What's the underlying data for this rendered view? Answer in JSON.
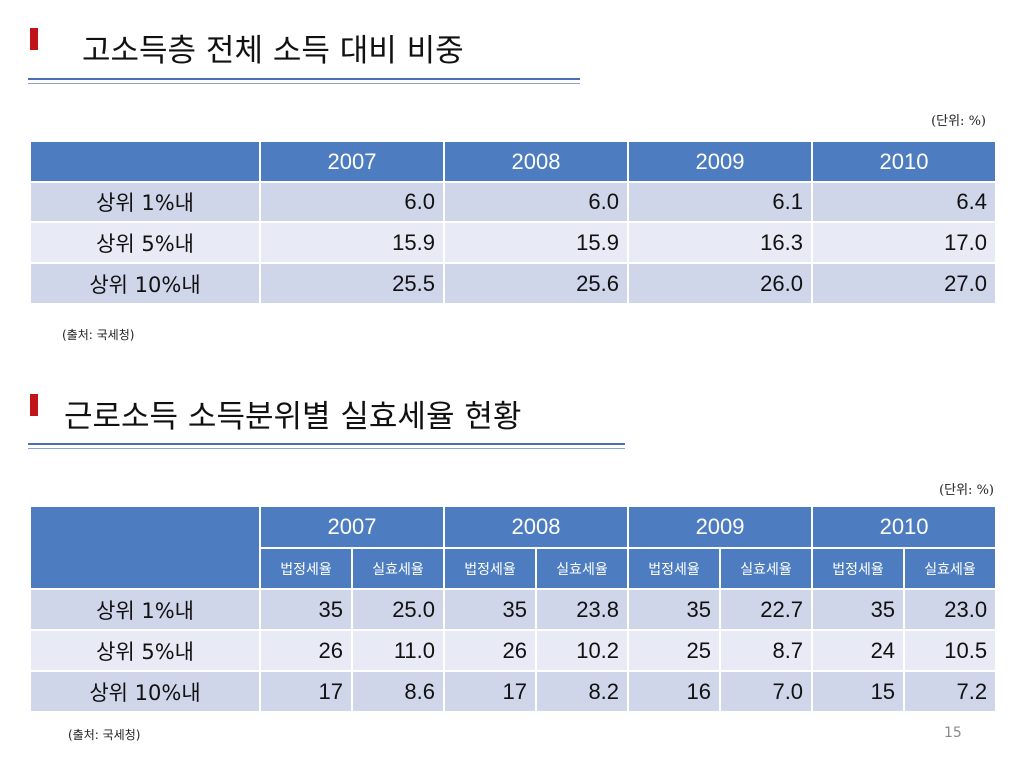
{
  "section1": {
    "title": "고소득층 전체 소득 대비 비중",
    "unit": "(단위: %)",
    "years": [
      "2007",
      "2008",
      "2009",
      "2010"
    ],
    "rows": [
      {
        "label": "상위 1%내",
        "values": [
          "6.0",
          "6.0",
          "6.1",
          "6.4"
        ]
      },
      {
        "label": "상위 5%내",
        "values": [
          "15.9",
          "15.9",
          "16.3",
          "17.0"
        ]
      },
      {
        "label": "상위 10%내",
        "values": [
          "25.5",
          "25.6",
          "26.0",
          "27.0"
        ]
      }
    ],
    "source": "(출처: 국세청)"
  },
  "section2": {
    "title": "근로소득 소득분위별 실효세율 현황",
    "unit": "(단위: %)",
    "years": [
      "2007",
      "2008",
      "2009",
      "2010"
    ],
    "subheaders": [
      "법정세율",
      "실효세율",
      "법정세율",
      "실효세율",
      "법정세율",
      "실효세율",
      "법정세율",
      "실효세율"
    ],
    "rows": [
      {
        "label": "상위 1%내",
        "values": [
          "35",
          "25.0",
          "35",
          "23.8",
          "35",
          "22.7",
          "35",
          "23.0"
        ]
      },
      {
        "label": "상위 5%내",
        "values": [
          "26",
          "11.0",
          "26",
          "10.2",
          "25",
          "8.7",
          "24",
          "10.5"
        ]
      },
      {
        "label": "상위 10%내",
        "values": [
          "17",
          "8.6",
          "17",
          "8.2",
          "16",
          "7.0",
          "15",
          "7.2"
        ]
      }
    ],
    "source": "(출처: 국세청)"
  },
  "page_number": "15",
  "colors": {
    "accent_marker": "#c0141b",
    "header_fill": "#4d7dc0",
    "row_fill_dark": "#cfd6ea",
    "row_fill_light": "#e8ebf5",
    "title_rule": "#4a6fb5"
  }
}
